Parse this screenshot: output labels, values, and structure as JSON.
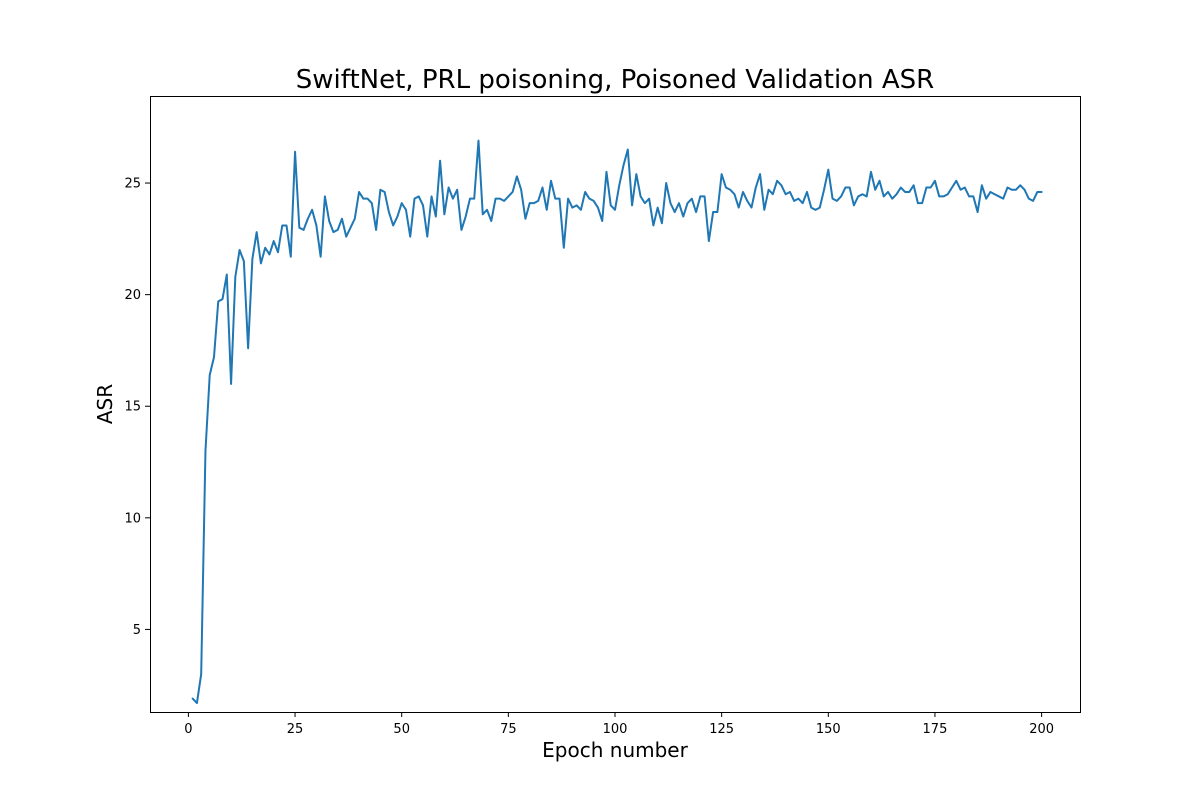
{
  "chart_data": {
    "type": "line",
    "title": "SwiftNet, PRL poisoning, Poisoned Validation ASR",
    "xlabel": "Epoch number",
    "ylabel": "ASR",
    "xlim": [
      -9,
      209
    ],
    "ylim": [
      1.3,
      28.9
    ],
    "xticks": [
      0,
      25,
      50,
      75,
      100,
      125,
      150,
      175,
      200
    ],
    "yticks": [
      5,
      10,
      15,
      20,
      25
    ],
    "grid": false,
    "line_color": "#1f77b4",
    "series": [
      {
        "x": [
          1,
          2,
          3,
          4,
          5,
          6,
          7,
          8,
          9,
          10,
          11,
          12,
          13,
          14,
          15,
          16,
          17,
          18,
          19,
          20,
          21,
          22,
          23,
          24,
          25,
          26,
          27,
          28,
          29,
          30,
          31,
          32,
          33,
          34,
          35,
          36,
          37,
          38,
          39,
          40,
          41,
          42,
          43,
          44,
          45,
          46,
          47,
          48,
          49,
          50,
          51,
          52,
          53,
          54,
          55,
          56,
          57,
          58,
          59,
          60,
          61,
          62,
          63,
          64,
          65,
          66,
          67,
          68,
          69,
          70,
          71,
          72,
          73,
          74,
          75,
          76,
          77,
          78,
          79,
          80,
          81,
          82,
          83,
          84,
          85,
          86,
          87,
          88,
          89,
          90,
          91,
          92,
          93,
          94,
          95,
          96,
          97,
          98,
          99,
          100,
          101,
          102,
          103,
          104,
          105,
          106,
          107,
          108,
          109,
          110,
          111,
          112,
          113,
          114,
          115,
          116,
          117,
          118,
          119,
          120,
          121,
          122,
          123,
          124,
          125,
          126,
          127,
          128,
          129,
          130,
          131,
          132,
          133,
          134,
          135,
          136,
          137,
          138,
          139,
          140,
          141,
          142,
          143,
          144,
          145,
          146,
          147,
          148,
          149,
          150,
          151,
          152,
          153,
          154,
          155,
          156,
          157,
          158,
          159,
          160,
          161,
          162,
          163,
          164,
          165,
          166,
          167,
          168,
          169,
          170,
          171,
          172,
          173,
          174,
          175,
          176,
          177,
          178,
          179,
          180,
          181,
          182,
          183,
          184,
          185,
          186,
          187,
          188,
          189,
          190,
          191,
          192,
          193,
          194,
          195,
          196,
          197,
          198,
          199,
          200
        ],
        "values": [
          1.9,
          1.7,
          3.0,
          13.0,
          16.4,
          17.2,
          19.7,
          19.8,
          20.9,
          16.0,
          20.8,
          22.0,
          21.5,
          17.6,
          21.6,
          22.8,
          21.4,
          22.1,
          21.8,
          22.4,
          21.9,
          23.1,
          23.1,
          21.7,
          26.4,
          23.0,
          22.9,
          23.4,
          23.8,
          23.1,
          21.7,
          24.4,
          23.3,
          22.8,
          22.9,
          23.4,
          22.6,
          23.0,
          23.4,
          24.6,
          24.3,
          24.3,
          24.1,
          22.9,
          24.7,
          24.6,
          23.7,
          23.1,
          23.5,
          24.1,
          23.8,
          22.6,
          24.3,
          24.4,
          24.0,
          22.6,
          24.4,
          23.5,
          26.0,
          23.6,
          24.8,
          24.3,
          24.7,
          22.9,
          23.5,
          24.3,
          24.3,
          26.9,
          23.6,
          23.8,
          23.3,
          24.3,
          24.3,
          24.2,
          24.4,
          24.6,
          25.3,
          24.7,
          23.4,
          24.1,
          24.1,
          24.2,
          24.8,
          23.8,
          25.1,
          24.3,
          24.3,
          22.1,
          24.3,
          23.9,
          24.0,
          23.8,
          24.6,
          24.3,
          24.2,
          23.9,
          23.3,
          25.5,
          24.0,
          23.8,
          24.9,
          25.8,
          26.5,
          24.0,
          25.4,
          24.4,
          24.1,
          24.3,
          23.1,
          23.9,
          23.2,
          25.0,
          24.1,
          23.7,
          24.1,
          23.5,
          24.1,
          24.3,
          23.7,
          24.4,
          24.4,
          22.4,
          23.7,
          23.7,
          25.4,
          24.8,
          24.7,
          24.5,
          23.9,
          24.6,
          24.2,
          23.9,
          24.8,
          25.4,
          23.8,
          24.7,
          24.5,
          25.1,
          24.9,
          24.5,
          24.6,
          24.2,
          24.3,
          24.1,
          24.6,
          23.9,
          23.8,
          23.9,
          24.7,
          25.6,
          24.3,
          24.2,
          24.4,
          24.8,
          24.8,
          24.0,
          24.4,
          24.5,
          24.4,
          25.5,
          24.7,
          25.1,
          24.4,
          24.6,
          24.3,
          24.5,
          24.8,
          24.6,
          24.6,
          24.9,
          24.1,
          24.1,
          24.8,
          24.8,
          25.1,
          24.4,
          24.4,
          24.5,
          24.8,
          25.1,
          24.7,
          24.8,
          24.4,
          24.4,
          23.7,
          24.9,
          24.3,
          24.6,
          24.5,
          24.4,
          24.3,
          24.8,
          24.7,
          24.7,
          24.9,
          24.7,
          24.3,
          24.2,
          24.6,
          24.6
        ]
      }
    ]
  }
}
